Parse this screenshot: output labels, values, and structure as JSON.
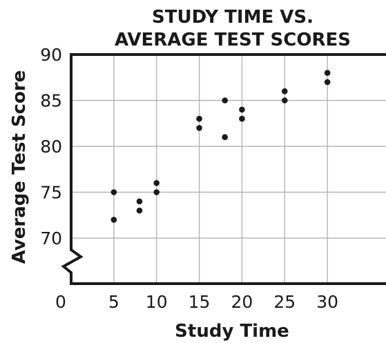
{
  "chart_data": {
    "type": "scatter",
    "title": [
      "STUDY TIME VS.",
      "AVERAGE TEST SCORES"
    ],
    "xlabel": "Study Time",
    "ylabel": "Average Test Score",
    "xlim": [
      0,
      35
    ],
    "ylim": [
      65,
      90
    ],
    "x_ticks": [
      5,
      10,
      15,
      20,
      25,
      30
    ],
    "x_tick_labels": [
      "5",
      "10",
      "15",
      "20",
      "25",
      "30"
    ],
    "x_origin_label": "0",
    "y_ticks": [
      70,
      75,
      80,
      85,
      90
    ],
    "y_tick_labels": [
      "70",
      "75",
      "80",
      "85",
      "90"
    ],
    "y_axis_break": true,
    "grid": true,
    "point_color": "#1a1a1a",
    "points": [
      {
        "x": 5,
        "y": 75
      },
      {
        "x": 5,
        "y": 72
      },
      {
        "x": 8,
        "y": 74
      },
      {
        "x": 8,
        "y": 73
      },
      {
        "x": 10,
        "y": 76
      },
      {
        "x": 10,
        "y": 75
      },
      {
        "x": 15,
        "y": 83
      },
      {
        "x": 15,
        "y": 82
      },
      {
        "x": 18,
        "y": 85
      },
      {
        "x": 18,
        "y": 81
      },
      {
        "x": 20,
        "y": 84
      },
      {
        "x": 20,
        "y": 83
      },
      {
        "x": 25,
        "y": 86
      },
      {
        "x": 25,
        "y": 85
      },
      {
        "x": 30,
        "y": 88
      },
      {
        "x": 30,
        "y": 87
      }
    ]
  }
}
